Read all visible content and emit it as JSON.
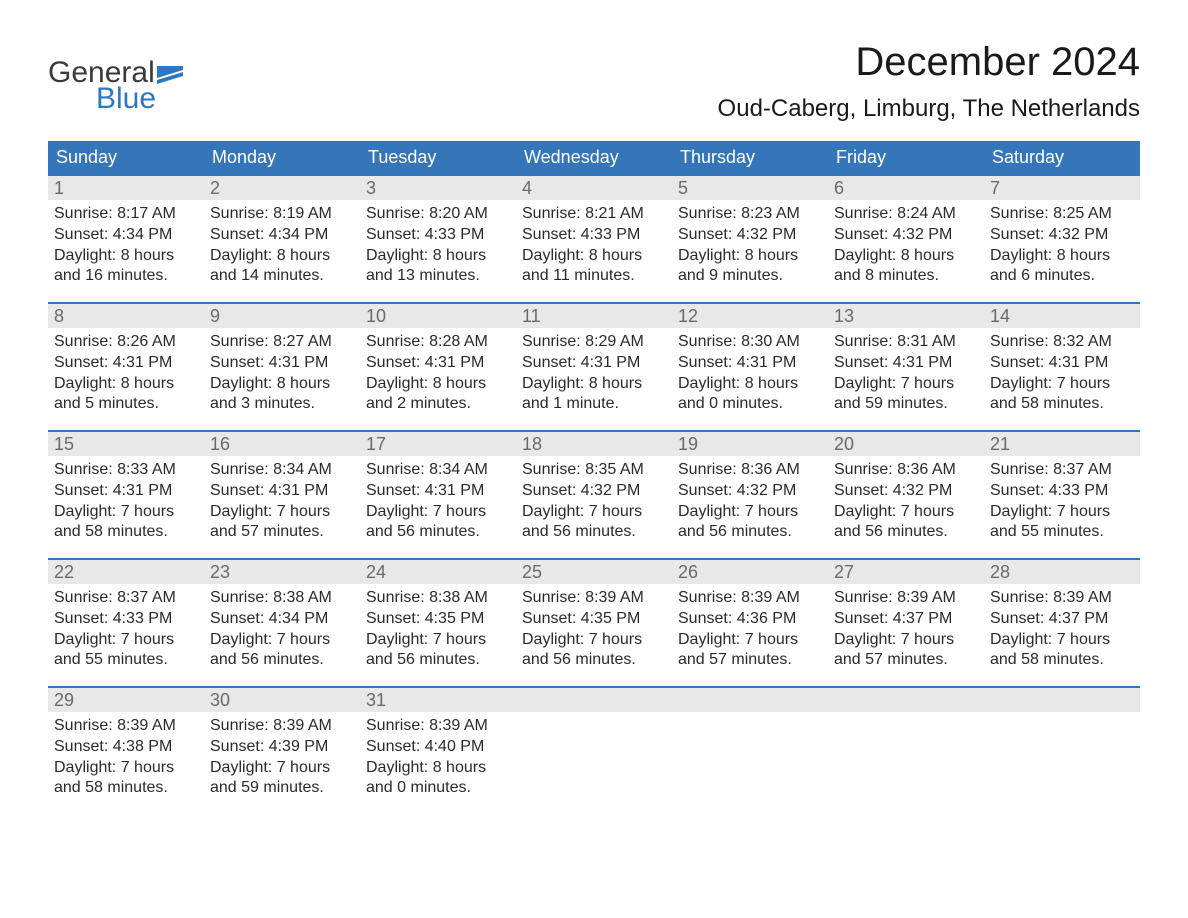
{
  "logo": {
    "general": "General",
    "blue": "Blue",
    "flag_color": "#2b79c2"
  },
  "title": "December 2024",
  "location": "Oud-Caberg, Limburg, The Netherlands",
  "colors": {
    "header_bg": "#3575b9",
    "header_text": "#ffffff",
    "daynum_bg": "#e8e8e8",
    "daynum_text": "#6a6a6a",
    "body_text": "#2a2a2a",
    "week_border": "#3575b9"
  },
  "day_names": [
    "Sunday",
    "Monday",
    "Tuesday",
    "Wednesday",
    "Thursday",
    "Friday",
    "Saturday"
  ],
  "weeks": [
    [
      {
        "n": "1",
        "sr": "8:17 AM",
        "ss": "4:34 PM",
        "dl": "8 hours and 16 minutes."
      },
      {
        "n": "2",
        "sr": "8:19 AM",
        "ss": "4:34 PM",
        "dl": "8 hours and 14 minutes."
      },
      {
        "n": "3",
        "sr": "8:20 AM",
        "ss": "4:33 PM",
        "dl": "8 hours and 13 minutes."
      },
      {
        "n": "4",
        "sr": "8:21 AM",
        "ss": "4:33 PM",
        "dl": "8 hours and 11 minutes."
      },
      {
        "n": "5",
        "sr": "8:23 AM",
        "ss": "4:32 PM",
        "dl": "8 hours and 9 minutes."
      },
      {
        "n": "6",
        "sr": "8:24 AM",
        "ss": "4:32 PM",
        "dl": "8 hours and 8 minutes."
      },
      {
        "n": "7",
        "sr": "8:25 AM",
        "ss": "4:32 PM",
        "dl": "8 hours and 6 minutes."
      }
    ],
    [
      {
        "n": "8",
        "sr": "8:26 AM",
        "ss": "4:31 PM",
        "dl": "8 hours and 5 minutes."
      },
      {
        "n": "9",
        "sr": "8:27 AM",
        "ss": "4:31 PM",
        "dl": "8 hours and 3 minutes."
      },
      {
        "n": "10",
        "sr": "8:28 AM",
        "ss": "4:31 PM",
        "dl": "8 hours and 2 minutes."
      },
      {
        "n": "11",
        "sr": "8:29 AM",
        "ss": "4:31 PM",
        "dl": "8 hours and 1 minute."
      },
      {
        "n": "12",
        "sr": "8:30 AM",
        "ss": "4:31 PM",
        "dl": "8 hours and 0 minutes."
      },
      {
        "n": "13",
        "sr": "8:31 AM",
        "ss": "4:31 PM",
        "dl": "7 hours and 59 minutes."
      },
      {
        "n": "14",
        "sr": "8:32 AM",
        "ss": "4:31 PM",
        "dl": "7 hours and 58 minutes."
      }
    ],
    [
      {
        "n": "15",
        "sr": "8:33 AM",
        "ss": "4:31 PM",
        "dl": "7 hours and 58 minutes."
      },
      {
        "n": "16",
        "sr": "8:34 AM",
        "ss": "4:31 PM",
        "dl": "7 hours and 57 minutes."
      },
      {
        "n": "17",
        "sr": "8:34 AM",
        "ss": "4:31 PM",
        "dl": "7 hours and 56 minutes."
      },
      {
        "n": "18",
        "sr": "8:35 AM",
        "ss": "4:32 PM",
        "dl": "7 hours and 56 minutes."
      },
      {
        "n": "19",
        "sr": "8:36 AM",
        "ss": "4:32 PM",
        "dl": "7 hours and 56 minutes."
      },
      {
        "n": "20",
        "sr": "8:36 AM",
        "ss": "4:32 PM",
        "dl": "7 hours and 56 minutes."
      },
      {
        "n": "21",
        "sr": "8:37 AM",
        "ss": "4:33 PM",
        "dl": "7 hours and 55 minutes."
      }
    ],
    [
      {
        "n": "22",
        "sr": "8:37 AM",
        "ss": "4:33 PM",
        "dl": "7 hours and 55 minutes."
      },
      {
        "n": "23",
        "sr": "8:38 AM",
        "ss": "4:34 PM",
        "dl": "7 hours and 56 minutes."
      },
      {
        "n": "24",
        "sr": "8:38 AM",
        "ss": "4:35 PM",
        "dl": "7 hours and 56 minutes."
      },
      {
        "n": "25",
        "sr": "8:39 AM",
        "ss": "4:35 PM",
        "dl": "7 hours and 56 minutes."
      },
      {
        "n": "26",
        "sr": "8:39 AM",
        "ss": "4:36 PM",
        "dl": "7 hours and 57 minutes."
      },
      {
        "n": "27",
        "sr": "8:39 AM",
        "ss": "4:37 PM",
        "dl": "7 hours and 57 minutes."
      },
      {
        "n": "28",
        "sr": "8:39 AM",
        "ss": "4:37 PM",
        "dl": "7 hours and 58 minutes."
      }
    ],
    [
      {
        "n": "29",
        "sr": "8:39 AM",
        "ss": "4:38 PM",
        "dl": "7 hours and 58 minutes."
      },
      {
        "n": "30",
        "sr": "8:39 AM",
        "ss": "4:39 PM",
        "dl": "7 hours and 59 minutes."
      },
      {
        "n": "31",
        "sr": "8:39 AM",
        "ss": "4:40 PM",
        "dl": "8 hours and 0 minutes."
      },
      null,
      null,
      null,
      null
    ]
  ],
  "labels": {
    "sunrise": "Sunrise:",
    "sunset": "Sunset:",
    "daylight": "Daylight:"
  }
}
